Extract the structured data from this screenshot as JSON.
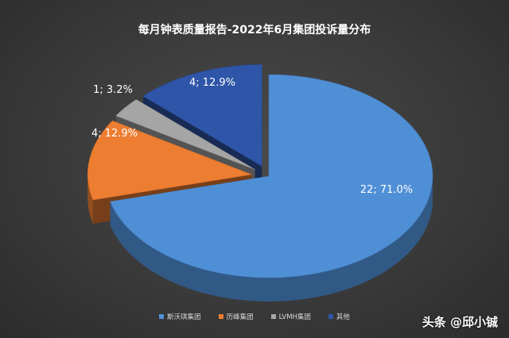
{
  "chart_data": {
    "type": "pie",
    "title": "每月钟表质量报告-2022年6月集团投诉量分布",
    "series": [
      {
        "name": "斯沃琪集团",
        "value": 22,
        "percent": "71.0%",
        "label": "22; 71.0%",
        "color": "#4f8fd6"
      },
      {
        "name": "历峰集团",
        "value": 4,
        "percent": "12.9%",
        "label": "4; 12.9%",
        "color": "#ed7d31"
      },
      {
        "name": "LVMH集团",
        "value": 1,
        "percent": "3.2%",
        "label": "1; 3.2%",
        "color": "#a5a5a5"
      },
      {
        "name": "其他",
        "value": 4,
        "percent": "12.9%",
        "label": "4; 12.9%",
        "color": "#2e55a8"
      }
    ],
    "legend_position": "bottom",
    "style": "3d-exploded"
  },
  "watermark": "头条 @邱小铖"
}
